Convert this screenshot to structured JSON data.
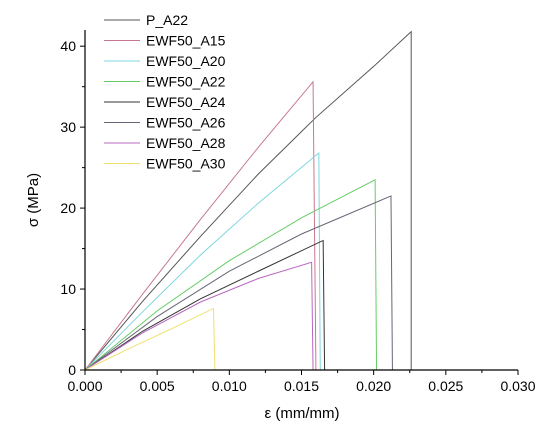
{
  "chart_data": {
    "type": "line",
    "title": "",
    "xlabel": "ε (mm/mm)",
    "ylabel": "σ (MPa)",
    "xlim": [
      0,
      0.03
    ],
    "ylim": [
      0,
      42
    ],
    "xticks": [
      "0.000",
      "0.005",
      "0.010",
      "0.015",
      "0.020",
      "0.025",
      "0.030"
    ],
    "yticks": [
      "0",
      "10",
      "20",
      "30",
      "40"
    ],
    "grid": false,
    "legend_position": "top-left",
    "series": [
      {
        "name": "P_A22",
        "color": "#555555",
        "x": [
          0,
          0.004,
          0.008,
          0.012,
          0.016,
          0.02,
          0.0226,
          0.0226
        ],
        "y": [
          0,
          8.5,
          16.5,
          24.2,
          31.2,
          37.5,
          41.8,
          0
        ]
      },
      {
        "name": "EWF50_A15",
        "color": "#c87890",
        "x": [
          0,
          0.004,
          0.008,
          0.012,
          0.0158,
          0.016
        ],
        "y": [
          0,
          9.4,
          18.6,
          27.5,
          35.6,
          0
        ]
      },
      {
        "name": "EWF50_A20",
        "color": "#7fd6e0",
        "x": [
          0,
          0.004,
          0.008,
          0.012,
          0.0162,
          0.0163
        ],
        "y": [
          0,
          7.2,
          14.2,
          20.6,
          26.8,
          0
        ]
      },
      {
        "name": "EWF50_A22",
        "color": "#66cc66",
        "x": [
          0,
          0.005,
          0.01,
          0.015,
          0.0201,
          0.0202
        ],
        "y": [
          0,
          7.3,
          13.5,
          18.8,
          23.5,
          0
        ]
      },
      {
        "name": "EWF50_A24",
        "color": "#333333",
        "x": [
          0,
          0.004,
          0.008,
          0.012,
          0.0165,
          0.0166
        ],
        "y": [
          0,
          4.8,
          8.8,
          12.2,
          16.0,
          0
        ]
      },
      {
        "name": "EWF50_A26",
        "color": "#666677",
        "x": [
          0,
          0.005,
          0.01,
          0.015,
          0.0212,
          0.0213
        ],
        "y": [
          0,
          6.6,
          12.2,
          16.8,
          21.5,
          0
        ]
      },
      {
        "name": "EWF50_A28",
        "color": "#b868c0",
        "x": [
          0,
          0.004,
          0.008,
          0.012,
          0.0157,
          0.0158
        ],
        "y": [
          0,
          4.6,
          8.4,
          11.3,
          13.3,
          0
        ]
      },
      {
        "name": "EWF50_A30",
        "color": "#f0e070",
        "x": [
          0,
          0.003,
          0.006,
          0.0089,
          0.009
        ],
        "y": [
          0,
          2.6,
          5.1,
          7.6,
          0
        ]
      }
    ]
  }
}
